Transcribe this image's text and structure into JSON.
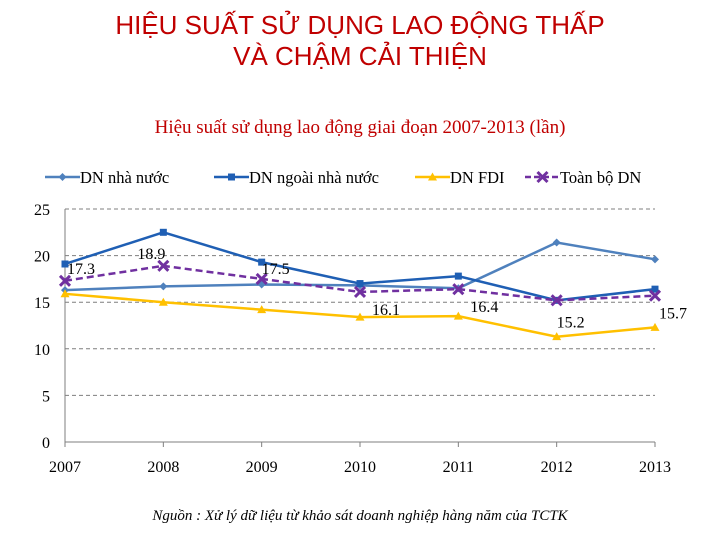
{
  "slide": {
    "title_line1": "HIỆU SUẤT SỬ DỤNG LAO ĐỘNG THẤP",
    "title_line2": "VÀ CHẬM CẢI THIỆN",
    "source": "Nguồn : Xử lý dữ liệu từ khảo sát doanh nghiệp hàng năm của TCTK"
  },
  "chart_data": {
    "type": "line",
    "title": "Hiệu suất sử dụng lao động giai đoạn 2007-2013 (lần)",
    "xlabel": "",
    "ylabel": "",
    "categories": [
      "2007",
      "2008",
      "2009",
      "2010",
      "2011",
      "2012",
      "2013"
    ],
    "ylim": [
      0,
      25
    ],
    "yticks": [
      0,
      5,
      10,
      15,
      20,
      25
    ],
    "grid": true,
    "legend_position": "top",
    "series": [
      {
        "name": "DN nhà nước",
        "color": "#4f81bd",
        "marker": "diamond",
        "dashed": false,
        "values": [
          16.3,
          16.7,
          16.9,
          16.8,
          16.5,
          21.4,
          19.6
        ]
      },
      {
        "name": "DN ngoài nhà nước",
        "color": "#1f5fb4",
        "marker": "square",
        "dashed": false,
        "values": [
          19.1,
          22.5,
          19.3,
          17.0,
          17.8,
          15.2,
          16.4
        ]
      },
      {
        "name": "DN FDI",
        "color": "#ffc000",
        "marker": "triangle",
        "dashed": false,
        "values": [
          15.9,
          15.0,
          14.2,
          13.4,
          13.5,
          11.3,
          12.3
        ]
      },
      {
        "name": "Toàn bộ DN",
        "color": "#7030a0",
        "marker": "x",
        "dashed": true,
        "values": [
          17.3,
          18.9,
          17.5,
          16.1,
          16.4,
          15.2,
          15.7
        ],
        "data_labels": [
          "17.3",
          "18.9",
          "17.5",
          "16.1",
          "16.4",
          "15.2",
          "15.7"
        ]
      }
    ]
  }
}
